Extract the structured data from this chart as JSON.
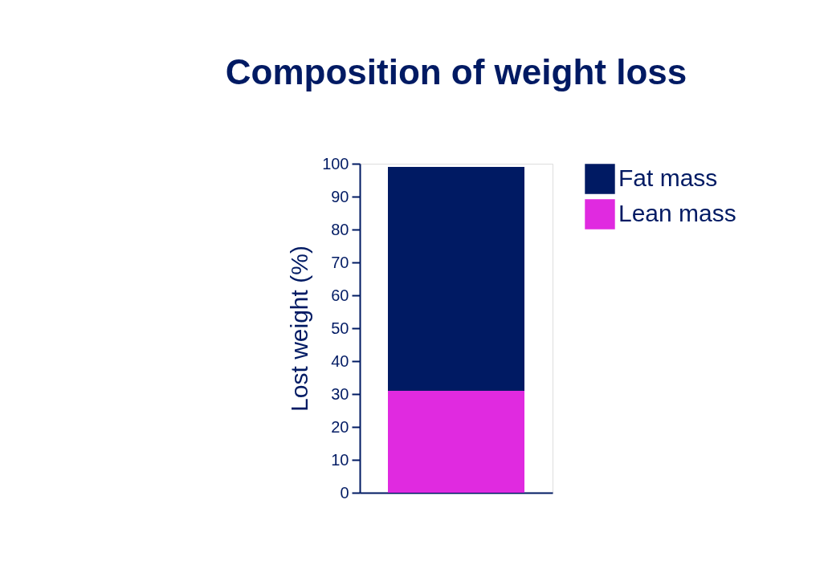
{
  "chart_data": {
    "type": "bar",
    "title": "Composition of weight loss",
    "ylabel": "Lost weight (%)",
    "categories": [
      null
    ],
    "stacked": true,
    "series": [
      {
        "name": "Lean mass",
        "color": "#e02ae0",
        "values": [
          31
        ]
      },
      {
        "name": "Fat mass",
        "color": "#001a63",
        "values": [
          68
        ]
      }
    ],
    "ylim": [
      0,
      100
    ],
    "yticks": [
      0,
      10,
      20,
      30,
      40,
      50,
      60,
      70,
      80,
      90,
      100
    ],
    "grid": false,
    "legend": "top right",
    "tick_labels": "y"
  }
}
